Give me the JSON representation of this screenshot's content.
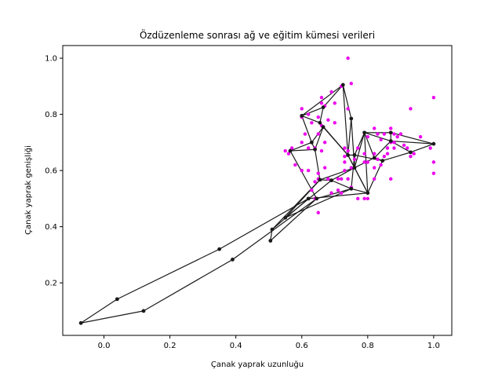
{
  "chart_data": {
    "type": "scatter",
    "title": "Özdüzenleme sonrası ağ ve eğitim kümesi verileri",
    "xlabel": "Çanak yaprak uzunluğu",
    "ylabel": "Çanak yaprak genişliği",
    "xlim": [
      -0.125,
      1.055
    ],
    "ylim": [
      0.013,
      1.045
    ],
    "x_ticks": [
      "0.0",
      "0.2",
      "0.4",
      "0.6",
      "0.8",
      "1.0"
    ],
    "y_ticks": [
      "0.2",
      "0.4",
      "0.6",
      "0.8",
      "1.0"
    ],
    "grid": false,
    "colors": {
      "training_points": "#ee00ee",
      "network": "#1a1a1a"
    },
    "series": [
      {
        "kind": "training-points",
        "points": [
          [
            0.74,
            1.0
          ],
          [
            0.75,
            0.91
          ],
          [
            0.72,
            0.9
          ],
          [
            0.69,
            0.88
          ],
          [
            0.66,
            0.86
          ],
          [
            0.7,
            0.84
          ],
          [
            0.66,
            0.84
          ],
          [
            0.67,
            0.83
          ],
          [
            0.74,
            0.82
          ],
          [
            0.6,
            0.82
          ],
          [
            0.93,
            0.82
          ],
          [
            1.0,
            0.86
          ],
          [
            0.62,
            0.8
          ],
          [
            0.65,
            0.79
          ],
          [
            0.6,
            0.79
          ],
          [
            0.63,
            0.77
          ],
          [
            0.68,
            0.78
          ],
          [
            0.7,
            0.77
          ],
          [
            0.66,
            0.76
          ],
          [
            0.61,
            0.73
          ],
          [
            0.65,
            0.73
          ],
          [
            0.63,
            0.7
          ],
          [
            0.62,
            0.68
          ],
          [
            0.6,
            0.7
          ],
          [
            0.57,
            0.68
          ],
          [
            0.55,
            0.67
          ],
          [
            0.56,
            0.66
          ],
          [
            0.64,
            0.68
          ],
          [
            0.66,
            0.67
          ],
          [
            0.67,
            0.7
          ],
          [
            0.73,
            0.68
          ],
          [
            0.74,
            0.67
          ],
          [
            0.73,
            0.65
          ],
          [
            0.73,
            0.63
          ],
          [
            0.75,
            0.61
          ],
          [
            0.76,
            0.64
          ],
          [
            0.77,
            0.68
          ],
          [
            0.79,
            0.66
          ],
          [
            0.79,
            0.63
          ],
          [
            0.8,
            0.72
          ],
          [
            0.82,
            0.75
          ],
          [
            0.83,
            0.73
          ],
          [
            0.84,
            0.71
          ],
          [
            0.85,
            0.73
          ],
          [
            0.86,
            0.68
          ],
          [
            0.87,
            0.7
          ],
          [
            0.87,
            0.75
          ],
          [
            0.88,
            0.73
          ],
          [
            0.88,
            0.7
          ],
          [
            0.88,
            0.68
          ],
          [
            0.89,
            0.72
          ],
          [
            0.9,
            0.73
          ],
          [
            0.91,
            0.69
          ],
          [
            0.92,
            0.68
          ],
          [
            0.93,
            0.65
          ],
          [
            0.94,
            0.66
          ],
          [
            0.82,
            0.66
          ],
          [
            0.83,
            0.64
          ],
          [
            0.84,
            0.62
          ],
          [
            0.82,
            0.61
          ],
          [
            0.8,
            0.63
          ],
          [
            0.85,
            0.65
          ],
          [
            0.86,
            0.66
          ],
          [
            0.96,
            0.72
          ],
          [
            0.99,
            0.68
          ],
          [
            1.0,
            0.63
          ],
          [
            1.0,
            0.59
          ],
          [
            0.67,
            0.61
          ],
          [
            0.65,
            0.59
          ],
          [
            0.65,
            0.57
          ],
          [
            0.68,
            0.57
          ],
          [
            0.71,
            0.57
          ],
          [
            0.72,
            0.57
          ],
          [
            0.74,
            0.57
          ],
          [
            0.73,
            0.6
          ],
          [
            0.72,
            0.52
          ],
          [
            0.77,
            0.5
          ],
          [
            0.79,
            0.5
          ],
          [
            0.8,
            0.5
          ],
          [
            0.64,
            0.56
          ],
          [
            0.63,
            0.53
          ],
          [
            0.64,
            0.5
          ],
          [
            0.65,
            0.45
          ],
          [
            0.69,
            0.52
          ],
          [
            0.75,
            0.54
          ],
          [
            0.82,
            0.57
          ],
          [
            0.87,
            0.57
          ],
          [
            0.62,
            0.6
          ],
          [
            0.6,
            0.6
          ],
          [
            0.58,
            0.62
          ],
          [
            0.71,
            0.53
          ]
        ]
      },
      {
        "kind": "network-nodes",
        "points": [
          [
            -0.07,
            0.057
          ],
          [
            0.04,
            0.142
          ],
          [
            0.12,
            0.1
          ],
          [
            0.35,
            0.32
          ],
          [
            0.39,
            0.283
          ],
          [
            0.505,
            0.35
          ],
          [
            0.51,
            0.39
          ],
          [
            0.55,
            0.432
          ],
          [
            0.62,
            0.5
          ],
          [
            0.645,
            0.5
          ],
          [
            0.655,
            0.567
          ],
          [
            0.69,
            0.565
          ],
          [
            0.75,
            0.535
          ],
          [
            0.8,
            0.52
          ],
          [
            0.76,
            0.61
          ],
          [
            0.76,
            0.655
          ],
          [
            0.74,
            0.655
          ],
          [
            0.75,
            0.785
          ],
          [
            0.725,
            0.905
          ],
          [
            0.665,
            0.825
          ],
          [
            0.6,
            0.795
          ],
          [
            0.655,
            0.77
          ],
          [
            0.665,
            0.755
          ],
          [
            0.63,
            0.7
          ],
          [
            0.64,
            0.675
          ],
          [
            0.565,
            0.67
          ],
          [
            0.79,
            0.735
          ],
          [
            0.87,
            0.735
          ],
          [
            0.87,
            0.705
          ],
          [
            0.82,
            0.645
          ],
          [
            0.845,
            0.635
          ],
          [
            0.93,
            0.665
          ],
          [
            1.0,
            0.695
          ]
        ]
      }
    ],
    "edges": [
      [
        0,
        1
      ],
      [
        1,
        3
      ],
      [
        3,
        8
      ],
      [
        0,
        2
      ],
      [
        2,
        4
      ],
      [
        4,
        9
      ],
      [
        5,
        6
      ],
      [
        5,
        9
      ],
      [
        6,
        10
      ],
      [
        6,
        8
      ],
      [
        7,
        10
      ],
      [
        7,
        11
      ],
      [
        7,
        12
      ],
      [
        8,
        13
      ],
      [
        9,
        12
      ],
      [
        10,
        11
      ],
      [
        11,
        12
      ],
      [
        12,
        13
      ],
      [
        10,
        14
      ],
      [
        11,
        14
      ],
      [
        12,
        15
      ],
      [
        13,
        14
      ],
      [
        13,
        16
      ],
      [
        13,
        26
      ],
      [
        14,
        15
      ],
      [
        14,
        16
      ],
      [
        15,
        16
      ],
      [
        16,
        17
      ],
      [
        16,
        18
      ],
      [
        16,
        21
      ],
      [
        16,
        22
      ],
      [
        17,
        18
      ],
      [
        17,
        14
      ],
      [
        18,
        19
      ],
      [
        18,
        20
      ],
      [
        19,
        20
      ],
      [
        19,
        21
      ],
      [
        20,
        21
      ],
      [
        20,
        23
      ],
      [
        21,
        22
      ],
      [
        22,
        23
      ],
      [
        22,
        24
      ],
      [
        23,
        24
      ],
      [
        23,
        25
      ],
      [
        24,
        25
      ],
      [
        24,
        10
      ],
      [
        25,
        9
      ],
      [
        14,
        26
      ],
      [
        15,
        26
      ],
      [
        26,
        27
      ],
      [
        26,
        28
      ],
      [
        27,
        28
      ],
      [
        27,
        32
      ],
      [
        28,
        31
      ],
      [
        28,
        29
      ],
      [
        29,
        30
      ],
      [
        29,
        26
      ],
      [
        30,
        31
      ],
      [
        30,
        13
      ],
      [
        30,
        15
      ],
      [
        31,
        32
      ],
      [
        32,
        28
      ],
      [
        14,
        29
      ]
    ]
  }
}
